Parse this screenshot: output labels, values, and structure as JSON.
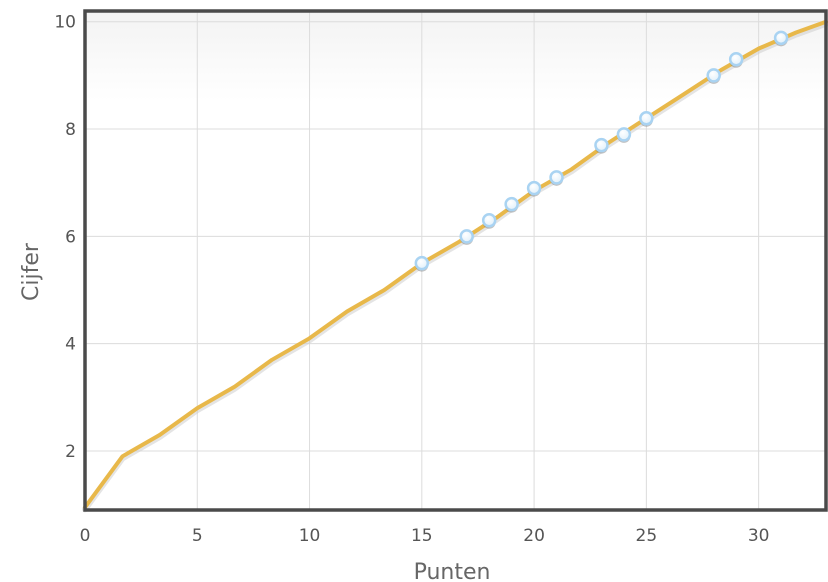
{
  "chart_data": {
    "type": "line",
    "xlabel": "Punten",
    "ylabel": "Cijfer",
    "xlim": [
      0,
      33
    ],
    "ylim": [
      0.9,
      10.2
    ],
    "x_ticks": [
      "0",
      "5",
      "10",
      "15",
      "20",
      "25",
      "30"
    ],
    "y_ticks": [
      "2",
      "4",
      "6",
      "8",
      "10"
    ],
    "grid": true,
    "line_color": "#e8b84a",
    "marker_color": "#a9d3f2",
    "series": [
      {
        "values": [
          [
            0,
            0.95
          ],
          [
            1.67,
            1.9
          ],
          [
            3.33,
            2.3
          ],
          [
            5,
            2.8
          ],
          [
            6.67,
            3.2
          ],
          [
            8.33,
            3.7
          ],
          [
            10,
            4.1
          ],
          [
            11.67,
            4.6
          ],
          [
            13.33,
            5.0
          ],
          [
            15,
            5.5
          ],
          [
            16.67,
            5.9
          ],
          [
            18.33,
            6.35
          ],
          [
            20,
            6.85
          ],
          [
            21.67,
            7.25
          ],
          [
            23.33,
            7.75
          ],
          [
            25,
            8.2
          ],
          [
            26.67,
            8.65
          ],
          [
            28.33,
            9.1
          ],
          [
            30,
            9.5
          ],
          [
            31.67,
            9.8
          ],
          [
            33,
            10.0
          ]
        ]
      }
    ],
    "markers": [
      [
        15,
        5.5
      ],
      [
        17,
        6.0
      ],
      [
        18,
        6.3
      ],
      [
        19,
        6.6
      ],
      [
        20,
        6.9
      ],
      [
        21,
        7.1
      ],
      [
        23,
        7.7
      ],
      [
        24,
        7.9
      ],
      [
        25,
        8.2
      ],
      [
        28,
        9.0
      ],
      [
        29,
        9.3
      ],
      [
        31,
        9.7
      ]
    ]
  }
}
